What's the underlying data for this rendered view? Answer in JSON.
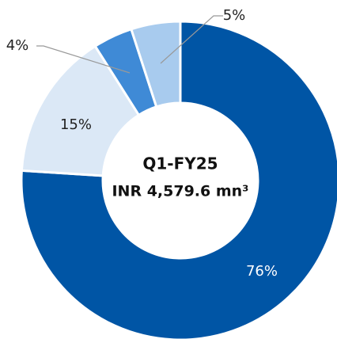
{
  "chart_data": {
    "type": "donut",
    "center_title": "Q1-FY25",
    "center_subtitle": "INR 4,579.6 mn³",
    "values": [
      76,
      15,
      4,
      5
    ],
    "value_labels": [
      "76%",
      "15%",
      "4%",
      "5%"
    ],
    "colors": [
      "#0055a5",
      "#dbe8f6",
      "#3f8ad6",
      "#a8cbee"
    ]
  }
}
